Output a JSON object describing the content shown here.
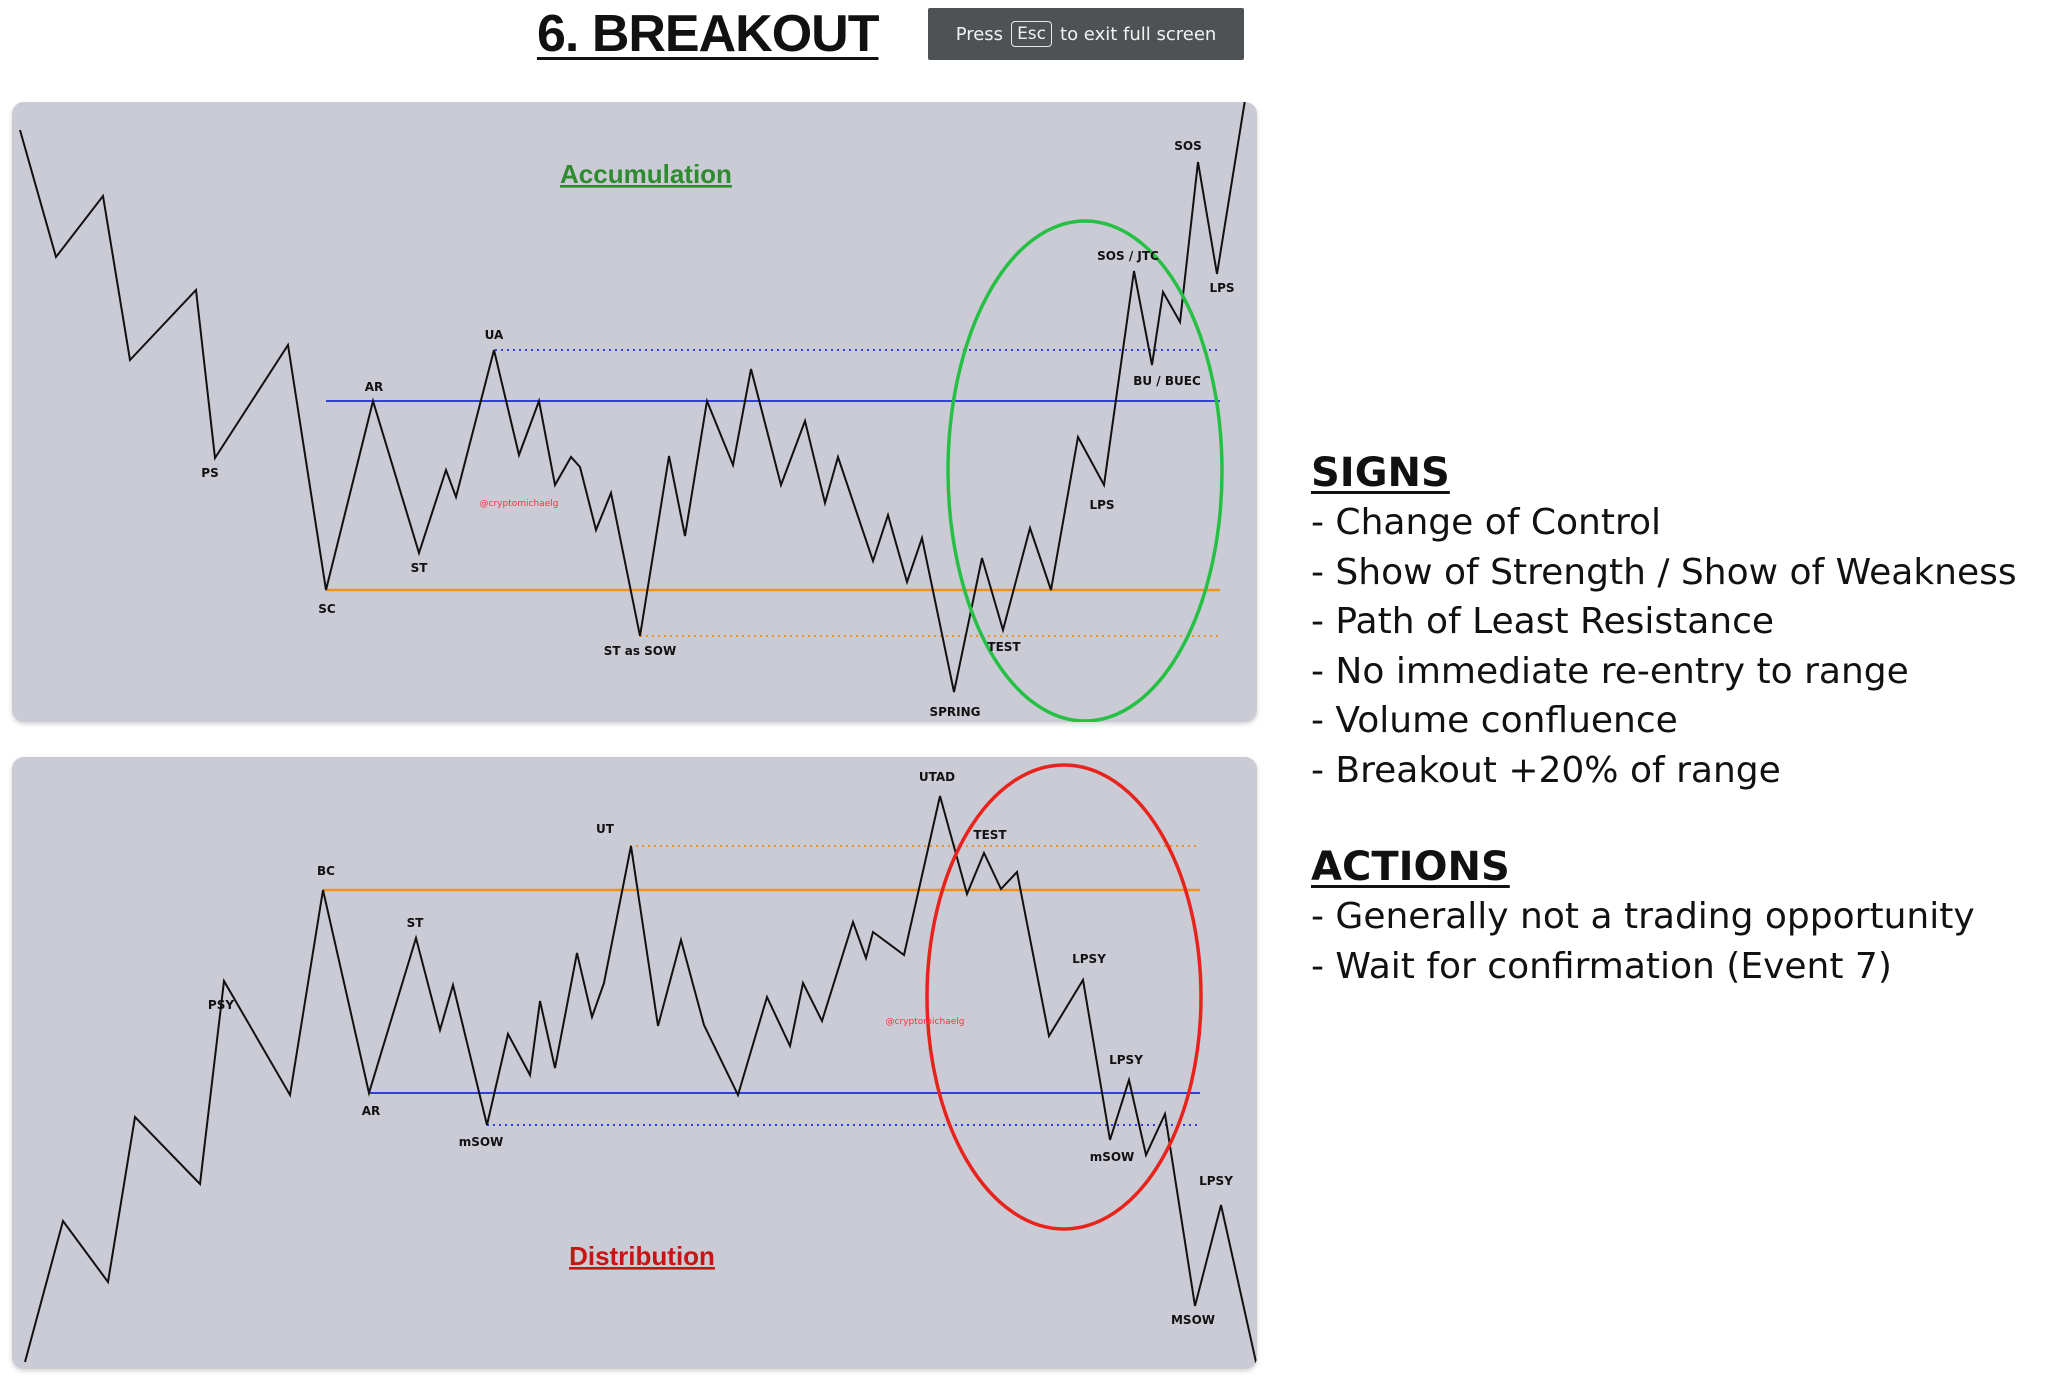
{
  "page_title": "6. BREAKOUT",
  "fullscreen_notice": {
    "before": "Press",
    "key": "Esc",
    "after": "to exit full screen"
  },
  "accumulation": {
    "title": "Accumulation",
    "watermark": "@cryptomichaelg",
    "labels": {
      "ps": "PS",
      "sc": "SC",
      "ar": "AR",
      "st": "ST",
      "ua": "UA",
      "st_sow": "ST as SOW",
      "spring": "SPRING",
      "test": "TEST",
      "lps": "LPS",
      "bu": "BU / BUEC",
      "sos_jtc": "SOS / JTC",
      "sos": "SOS",
      "lps_top": "LPS"
    }
  },
  "distribution": {
    "title": "Distribution",
    "watermark": "@cryptomichaelg",
    "labels": {
      "psy": "PSY",
      "bc": "BC",
      "ar": "AR",
      "st": "ST",
      "msow": "mSOW",
      "ut": "UT",
      "utad": "UTAD",
      "test": "TEST",
      "lpsy1": "LPSY",
      "lpsy2": "LPSY",
      "msow2": "mSOW",
      "lpsy3": "LPSY",
      "msow_final": "MSOW"
    }
  },
  "signs": {
    "heading": "SIGNS",
    "items": [
      "- Change of Control",
      "- Show of Strength / Show of Weakness",
      "- Path of Least Resistance",
      "- No immediate re-entry to range",
      "- Volume confluence",
      "- Breakout +20% of range"
    ]
  },
  "actions": {
    "heading": "ACTIONS",
    "items": [
      "- Generally not a trading opportunity",
      "- Wait for confirmation (Event 7)"
    ]
  },
  "colors": {
    "panel": "#cacbd5",
    "support": "#f0921e",
    "resistance": "#2f3ee6",
    "accumulation_title": "#2e8b2e",
    "distribution_title": "#c81414",
    "green_circle": "#26c044",
    "red_circle": "#e8231c",
    "watermark": "#ff3040"
  }
}
